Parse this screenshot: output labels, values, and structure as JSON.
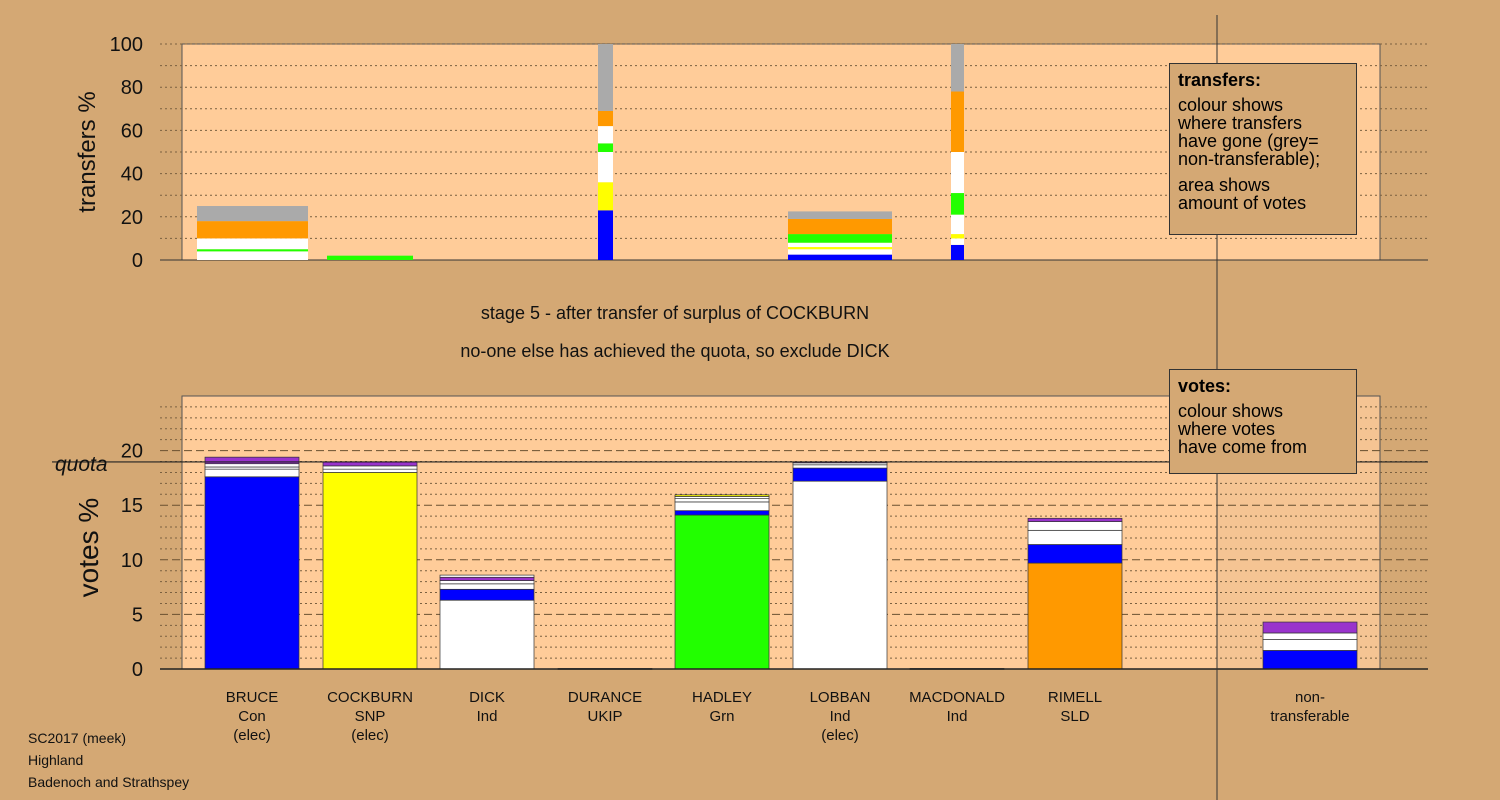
{
  "stage": {
    "line1": "stage 5 - after transfer of surplus of COCKBURN",
    "line2": "no-one else has achieved the quota, so exclude DICK"
  },
  "legends": {
    "transfers": {
      "title": "transfers:",
      "text1": "colour shows\nwhere transfers\nhave gone (grey=\nnon-transferable);",
      "text2": "area shows\namount of votes"
    },
    "votes": {
      "title": "votes:",
      "text1": "colour shows\nwhere votes\nhave come from"
    }
  },
  "candidates": [
    {
      "name": "BRUCE",
      "party": "Con",
      "status": "(elec)"
    },
    {
      "name": "COCKBURN",
      "party": "SNP",
      "status": "(elec)"
    },
    {
      "name": "DICK",
      "party": "Ind",
      "status": ""
    },
    {
      "name": "DURANCE",
      "party": "UKIP",
      "status": ""
    },
    {
      "name": "HADLEY",
      "party": "Grn",
      "status": ""
    },
    {
      "name": "LOBBAN",
      "party": "Ind",
      "status": "(elec)"
    },
    {
      "name": "MACDONALD",
      "party": "Ind",
      "status": ""
    },
    {
      "name": "RIMELL",
      "party": "SLD",
      "status": ""
    }
  ],
  "nontransferable": {
    "line1": "non-",
    "line2": "transferable"
  },
  "footer": {
    "line1": "SC2017 (meek)",
    "line2": "Highland",
    "line3": "Badenoch and Strathspey"
  },
  "colors": {
    "background": "#d4a874",
    "panel": "#ffcc99",
    "Con": "#0000ff",
    "SNP": "#ffff00",
    "Ind": "#ffffff",
    "Grn": "#22ff00",
    "SLD": "#ff9900",
    "UKIP": "#9933cc",
    "nontransferable": "#aaaaaa"
  },
  "chart_data": [
    {
      "type": "bar",
      "name": "transfers",
      "ylabel": "transfers %",
      "ylim": [
        0,
        100
      ],
      "yticks": [
        0,
        20,
        40,
        60,
        80,
        100
      ],
      "grid": true,
      "columns": [
        {
          "segments": [
            {
              "color": "white",
              "value": 4
            },
            {
              "color": "green",
              "value": 1
            },
            {
              "color": "white",
              "value": 5
            },
            {
              "color": "orange",
              "value": 8
            },
            {
              "color": "grey",
              "value": 7
            }
          ]
        },
        {
          "segments": [
            {
              "color": "green",
              "value": 2
            }
          ]
        },
        {
          "segments": [
            {
              "color": "blue",
              "value": 23
            },
            {
              "color": "yellow",
              "value": 13
            },
            {
              "color": "white",
              "value": 14
            },
            {
              "color": "green",
              "value": 4
            },
            {
              "color": "white",
              "value": 8
            },
            {
              "color": "orange",
              "value": 7
            },
            {
              "color": "grey",
              "value": 31
            }
          ]
        },
        {
          "segments": [
            {
              "color": "blue",
              "value": 2.5
            },
            {
              "color": "white",
              "value": 2.5
            },
            {
              "color": "yellow",
              "value": 1
            },
            {
              "color": "white",
              "value": 2
            },
            {
              "color": "green",
              "value": 4
            },
            {
              "color": "orange",
              "value": 7
            },
            {
              "color": "grey",
              "value": 3.5
            }
          ]
        },
        {
          "segments": [
            {
              "color": "blue",
              "value": 7
            },
            {
              "color": "white",
              "value": 3
            },
            {
              "color": "yellow",
              "value": 2
            },
            {
              "color": "white",
              "value": 9
            },
            {
              "color": "green",
              "value": 10
            },
            {
              "color": "white",
              "value": 19
            },
            {
              "color": "orange",
              "value": 28
            },
            {
              "color": "grey",
              "value": 22
            }
          ]
        }
      ]
    },
    {
      "type": "bar",
      "name": "votes",
      "ylabel": "votes %",
      "ylim": [
        0,
        25
      ],
      "yticks": [
        0,
        5,
        10,
        15,
        20
      ],
      "quota": 18.96,
      "quota_label": "quota",
      "categories": [
        "BRUCE",
        "COCKBURN",
        "DICK",
        "DURANCE",
        "HADLEY",
        "LOBBAN",
        "MACDONALD",
        "RIMELL",
        "non-transferable"
      ],
      "stacks": [
        [
          {
            "color": "blue",
            "value": 17.6
          },
          {
            "color": "white",
            "value": 0.7
          },
          {
            "color": "white",
            "value": 0.2
          },
          {
            "color": "white",
            "value": 0.3
          },
          {
            "color": "purple",
            "value": 0.6
          }
        ],
        [
          {
            "color": "yellow",
            "value": 18.0
          },
          {
            "color": "white",
            "value": 0.3
          },
          {
            "color": "white",
            "value": 0.3
          },
          {
            "color": "purple",
            "value": 0.36
          }
        ],
        [
          {
            "color": "white",
            "value": 6.3
          },
          {
            "color": "blue",
            "value": 1.0
          },
          {
            "color": "white",
            "value": 0.5
          },
          {
            "color": "white",
            "value": 0.3
          },
          {
            "color": "purple",
            "value": 0.3
          },
          {
            "color": "white",
            "value": 0.2
          }
        ],
        [
          {
            "color": "purple",
            "value": 0.05
          }
        ],
        [
          {
            "color": "green",
            "value": 14.1
          },
          {
            "color": "blue",
            "value": 0.4
          },
          {
            "color": "white",
            "value": 0.8
          },
          {
            "color": "white",
            "value": 0.3
          },
          {
            "color": "white",
            "value": 0.2
          },
          {
            "color": "yellow",
            "value": 0.15
          }
        ],
        [
          {
            "color": "white",
            "value": 17.2
          },
          {
            "color": "blue",
            "value": 1.2
          },
          {
            "color": "white",
            "value": 0.3
          },
          {
            "color": "white",
            "value": 0.2
          },
          {
            "color": "purple",
            "value": 0.06
          }
        ],
        [
          {
            "color": "purple",
            "value": 0.05
          }
        ],
        [
          {
            "color": "orange",
            "value": 9.7
          },
          {
            "color": "blue",
            "value": 1.7
          },
          {
            "color": "white",
            "value": 1.3
          },
          {
            "color": "white",
            "value": 0.8
          },
          {
            "color": "purple",
            "value": 0.3
          }
        ],
        [
          {
            "color": "blue",
            "value": 1.7
          },
          {
            "color": "white",
            "value": 1.0
          },
          {
            "color": "white",
            "value": 0.6
          },
          {
            "color": "purple",
            "value": 1.0
          }
        ]
      ]
    }
  ]
}
